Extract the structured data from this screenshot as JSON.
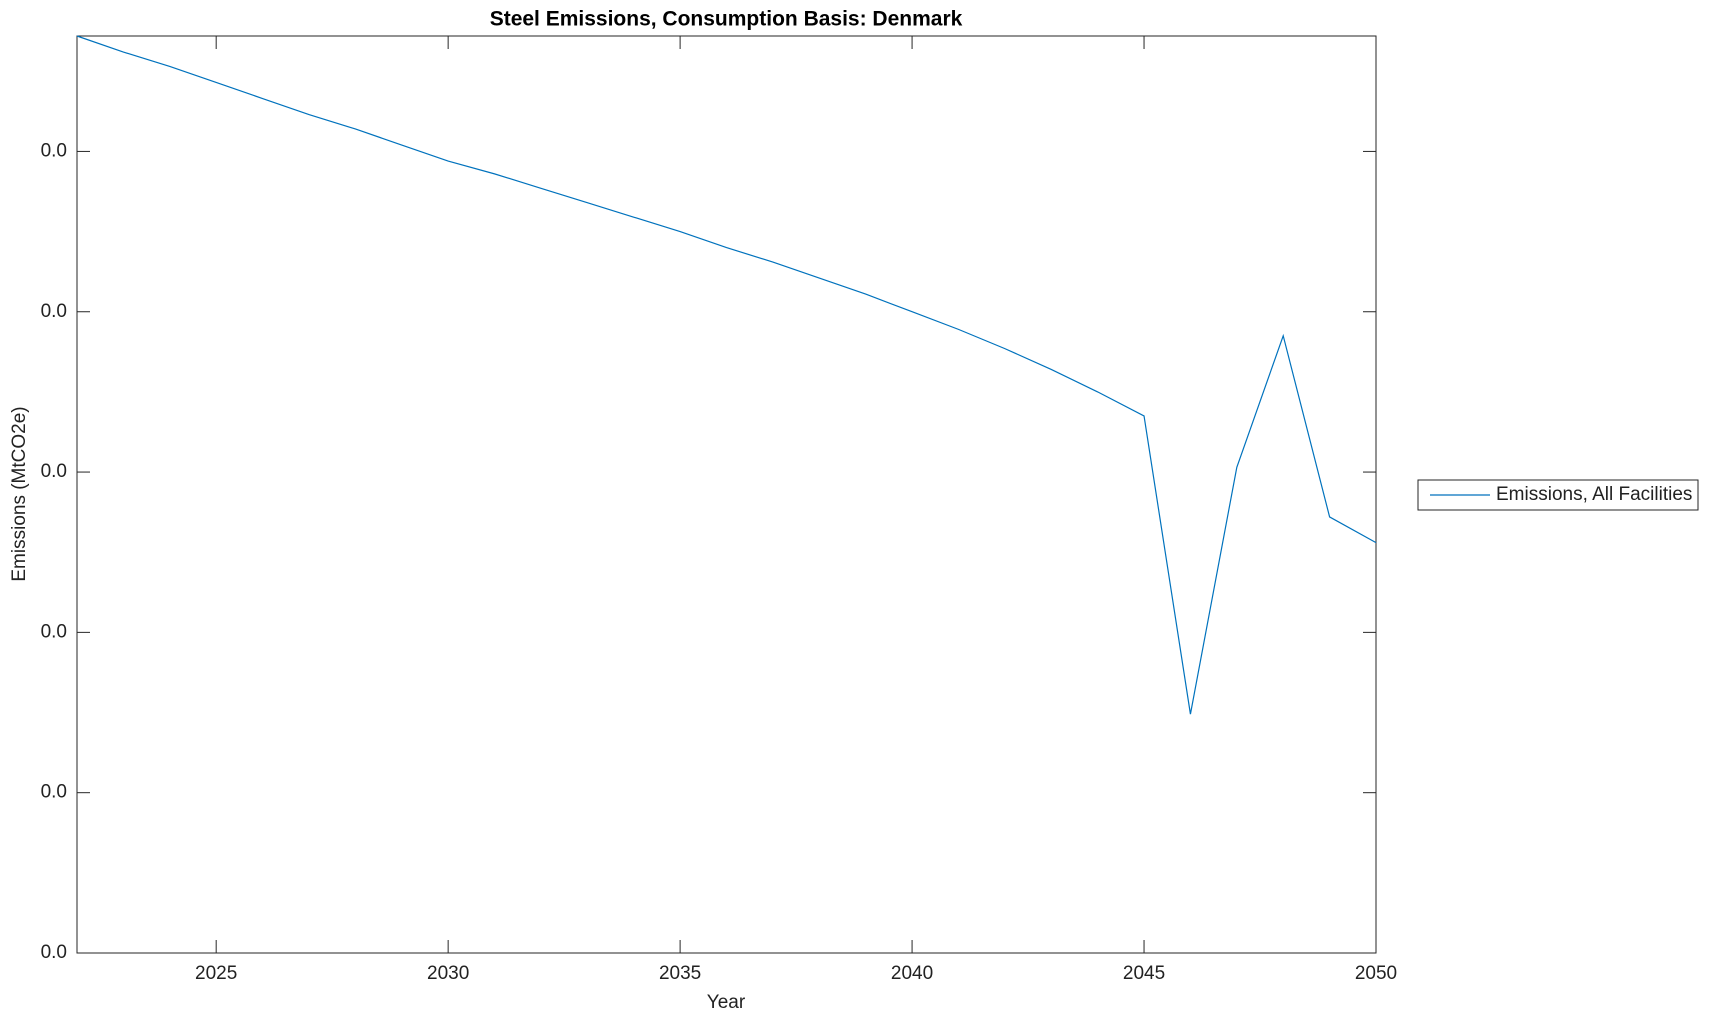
{
  "chart_data": {
    "type": "line",
    "title": "Steel Emissions, Consumption Basis: Denmark",
    "x_label": "Year",
    "y_label": "Emissions (MtCO2e)",
    "x": [
      2022,
      2023,
      2024,
      2025,
      2026,
      2027,
      2028,
      2029,
      2030,
      2031,
      2032,
      2033,
      2034,
      2035,
      2036,
      2037,
      2038,
      2039,
      2040,
      2041,
      2042,
      2043,
      2044,
      2045,
      2046,
      2047,
      2048,
      2049,
      2050
    ],
    "series": [
      {
        "name": "Emissions, All Facilities",
        "color": "#0072bd",
        "values": [
          0.00572,
          0.00562,
          0.00553,
          0.00543,
          0.00533,
          0.00523,
          0.00514,
          0.00504,
          0.00494,
          0.00486,
          0.00477,
          0.00468,
          0.00459,
          0.0045,
          0.0044,
          0.00431,
          0.00421,
          0.00411,
          0.004,
          0.00389,
          0.00377,
          0.00364,
          0.0035,
          0.00335,
          0.00149,
          0.00303,
          0.00385,
          0.00272,
          0.00256
        ]
      }
    ],
    "xlim": [
      2022,
      2050
    ],
    "xticks": [
      2025,
      2030,
      2035,
      2040,
      2045,
      2050
    ],
    "ylim": [
      0,
      0.00572
    ],
    "yticks": [
      {
        "value": 0,
        "label": "0.0"
      },
      {
        "value": 0.001,
        "label": "0.0"
      },
      {
        "value": 0.002,
        "label": "0.0"
      },
      {
        "value": 0.003,
        "label": "0.0"
      },
      {
        "value": 0.004,
        "label": "0.0"
      },
      {
        "value": 0.005,
        "label": "0.0"
      }
    ],
    "legend": "east-outside",
    "grid": false
  }
}
